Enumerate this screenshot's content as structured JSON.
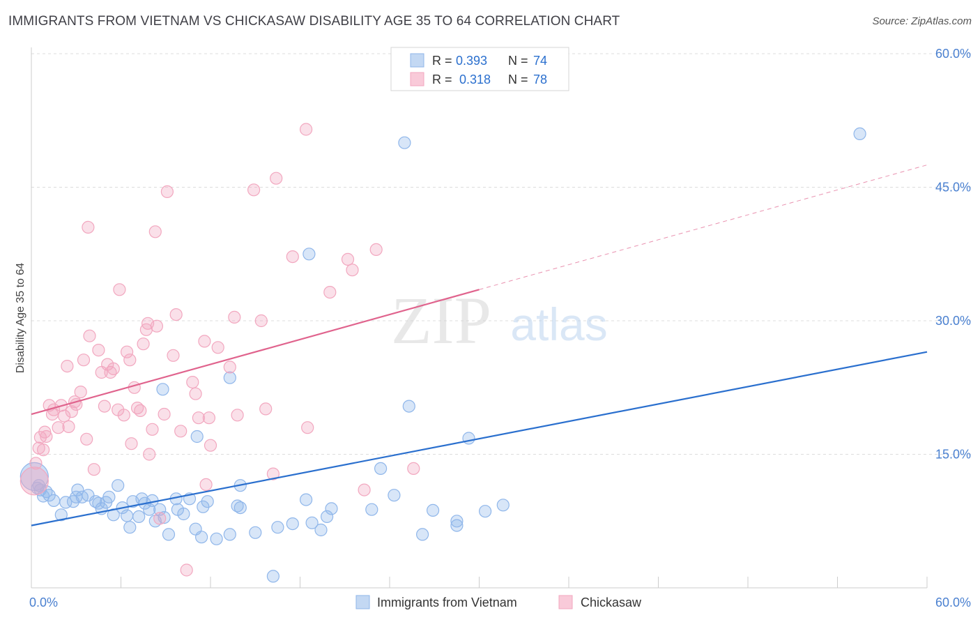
{
  "header": {
    "title": "IMMIGRANTS FROM VIETNAM VS CHICKASAW DISABILITY AGE 35 TO 64 CORRELATION CHART",
    "source": "Source: ZipAtlas.com"
  },
  "watermark": {
    "zip": "ZIP",
    "atlas": "atlas"
  },
  "chart_data": {
    "type": "scatter",
    "ylabel": "Disability Age 35 to 64",
    "xlim": [
      0,
      60
    ],
    "ylim": [
      0,
      60
    ],
    "x_tick_labels": [
      {
        "value": 0,
        "label": "0.0%"
      },
      {
        "value": 60,
        "label": "60.0%"
      }
    ],
    "y_tick_labels": [
      {
        "value": 15,
        "label": "15.0%"
      },
      {
        "value": 30,
        "label": "30.0%"
      },
      {
        "value": 45,
        "label": "45.0%"
      },
      {
        "value": 60,
        "label": "60.0%"
      }
    ],
    "grid": "horizontal dashed",
    "legend_top": [
      {
        "r_label": "R =",
        "r_value": "0.393",
        "n_label": "N =",
        "n_value": "74"
      },
      {
        "r_label": "R =",
        "r_value": "0.318",
        "n_label": "N =",
        "n_value": "78"
      }
    ],
    "series": [
      {
        "name": "Immigrants from Vietnam",
        "color": "#8fb6ea",
        "line_color": "#2a6fce",
        "trend": {
          "x0": 0,
          "y0": 7.0,
          "x1": 60,
          "y1": 26.5,
          "solid_until": 60
        },
        "points": [
          [
            0.2,
            12.5
          ],
          [
            0.4,
            11.2
          ],
          [
            0.6,
            11.0
          ],
          [
            0.8,
            10.3
          ],
          [
            1.2,
            10.4
          ],
          [
            1.5,
            9.8
          ],
          [
            2.0,
            8.2
          ],
          [
            2.3,
            9.6
          ],
          [
            2.8,
            9.7
          ],
          [
            3.1,
            11.0
          ],
          [
            3.4,
            10.2
          ],
          [
            3.8,
            10.4
          ],
          [
            4.3,
            9.7
          ],
          [
            4.7,
            8.9
          ],
          [
            5.0,
            9.6
          ],
          [
            5.2,
            10.2
          ],
          [
            5.5,
            8.2
          ],
          [
            5.8,
            11.5
          ],
          [
            6.1,
            9.0
          ],
          [
            6.4,
            8.1
          ],
          [
            6.6,
            6.8
          ],
          [
            6.8,
            9.7
          ],
          [
            7.2,
            8.0
          ],
          [
            7.4,
            10.0
          ],
          [
            7.6,
            9.5
          ],
          [
            7.9,
            8.8
          ],
          [
            8.1,
            9.8
          ],
          [
            8.3,
            7.5
          ],
          [
            8.6,
            8.8
          ],
          [
            8.9,
            7.9
          ],
          [
            8.8,
            22.3
          ],
          [
            9.2,
            6.0
          ],
          [
            9.7,
            10.0
          ],
          [
            9.8,
            8.8
          ],
          [
            10.2,
            8.3
          ],
          [
            10.6,
            10.0
          ],
          [
            11.0,
            6.6
          ],
          [
            11.1,
            17.0
          ],
          [
            11.4,
            5.7
          ],
          [
            11.5,
            9.1
          ],
          [
            11.8,
            9.7
          ],
          [
            12.4,
            5.5
          ],
          [
            13.3,
            6.0
          ],
          [
            13.3,
            23.6
          ],
          [
            13.8,
            9.2
          ],
          [
            14.0,
            9.0
          ],
          [
            14.0,
            11.5
          ],
          [
            15.0,
            6.2
          ],
          [
            16.2,
            1.3
          ],
          [
            16.5,
            6.8
          ],
          [
            17.5,
            7.2
          ],
          [
            18.4,
            9.9
          ],
          [
            18.6,
            37.5
          ],
          [
            18.8,
            7.3
          ],
          [
            19.4,
            6.5
          ],
          [
            19.8,
            8.0
          ],
          [
            20.1,
            8.9
          ],
          [
            22.8,
            8.8
          ],
          [
            23.4,
            13.4
          ],
          [
            24.3,
            10.4
          ],
          [
            25.0,
            50.0
          ],
          [
            25.3,
            20.4
          ],
          [
            26.2,
            6.0
          ],
          [
            26.9,
            8.7
          ],
          [
            28.5,
            7.5
          ],
          [
            28.5,
            7.0
          ],
          [
            29.3,
            16.8
          ],
          [
            30.4,
            8.6
          ],
          [
            31.6,
            9.3
          ],
          [
            55.5,
            51.0
          ],
          [
            0.5,
            11.5
          ],
          [
            1.0,
            10.8
          ],
          [
            3.0,
            10.2
          ],
          [
            4.5,
            9.5
          ]
        ]
      },
      {
        "name": "Chickasaw",
        "color": "#f2a7bf",
        "line_color": "#e0638d",
        "trend": {
          "x0": 0,
          "y0": 19.5,
          "x1": 60,
          "y1": 47.5,
          "solid_until": 30
        },
        "points": [
          [
            0.2,
            12.0
          ],
          [
            0.3,
            14.0
          ],
          [
            0.5,
            15.7
          ],
          [
            0.6,
            16.9
          ],
          [
            0.9,
            17.5
          ],
          [
            1.0,
            17.0
          ],
          [
            1.2,
            20.5
          ],
          [
            1.4,
            19.5
          ],
          [
            1.5,
            20.0
          ],
          [
            1.8,
            18.0
          ],
          [
            2.0,
            20.5
          ],
          [
            2.2,
            19.3
          ],
          [
            2.4,
            24.9
          ],
          [
            2.5,
            18.1
          ],
          [
            2.7,
            19.8
          ],
          [
            2.9,
            20.9
          ],
          [
            3.0,
            20.6
          ],
          [
            3.3,
            22.0
          ],
          [
            3.5,
            25.6
          ],
          [
            3.7,
            16.7
          ],
          [
            3.8,
            40.5
          ],
          [
            3.9,
            28.3
          ],
          [
            4.2,
            13.3
          ],
          [
            4.5,
            26.7
          ],
          [
            4.7,
            24.2
          ],
          [
            4.9,
            20.4
          ],
          [
            5.1,
            25.1
          ],
          [
            5.3,
            24.2
          ],
          [
            5.5,
            24.6
          ],
          [
            5.8,
            20.0
          ],
          [
            5.9,
            33.5
          ],
          [
            6.2,
            19.4
          ],
          [
            6.4,
            26.5
          ],
          [
            6.6,
            25.6
          ],
          [
            6.7,
            16.2
          ],
          [
            6.9,
            22.5
          ],
          [
            7.1,
            20.2
          ],
          [
            7.3,
            19.9
          ],
          [
            7.5,
            27.4
          ],
          [
            7.7,
            29.0
          ],
          [
            7.8,
            29.7
          ],
          [
            7.9,
            15.0
          ],
          [
            8.1,
            17.8
          ],
          [
            8.3,
            40.0
          ],
          [
            8.4,
            29.4
          ],
          [
            8.6,
            7.8
          ],
          [
            8.9,
            19.5
          ],
          [
            9.1,
            44.5
          ],
          [
            9.5,
            26.1
          ],
          [
            9.7,
            30.7
          ],
          [
            10.0,
            17.6
          ],
          [
            10.4,
            2.0
          ],
          [
            10.8,
            23.1
          ],
          [
            11.0,
            21.8
          ],
          [
            11.2,
            19.1
          ],
          [
            11.6,
            27.7
          ],
          [
            11.7,
            11.6
          ],
          [
            11.9,
            19.1
          ],
          [
            12.0,
            16.0
          ],
          [
            12.5,
            27.0
          ],
          [
            13.3,
            24.8
          ],
          [
            13.6,
            30.4
          ],
          [
            13.8,
            19.4
          ],
          [
            14.9,
            44.7
          ],
          [
            15.4,
            30.0
          ],
          [
            15.7,
            20.1
          ],
          [
            16.2,
            12.8
          ],
          [
            16.4,
            46.0
          ],
          [
            17.5,
            37.2
          ],
          [
            18.4,
            51.5
          ],
          [
            18.5,
            18.0
          ],
          [
            20.0,
            33.2
          ],
          [
            21.2,
            36.9
          ],
          [
            21.5,
            35.7
          ],
          [
            22.3,
            11.0
          ],
          [
            23.1,
            38.0
          ],
          [
            25.6,
            13.4
          ],
          [
            0.8,
            15.5
          ]
        ]
      }
    ]
  }
}
